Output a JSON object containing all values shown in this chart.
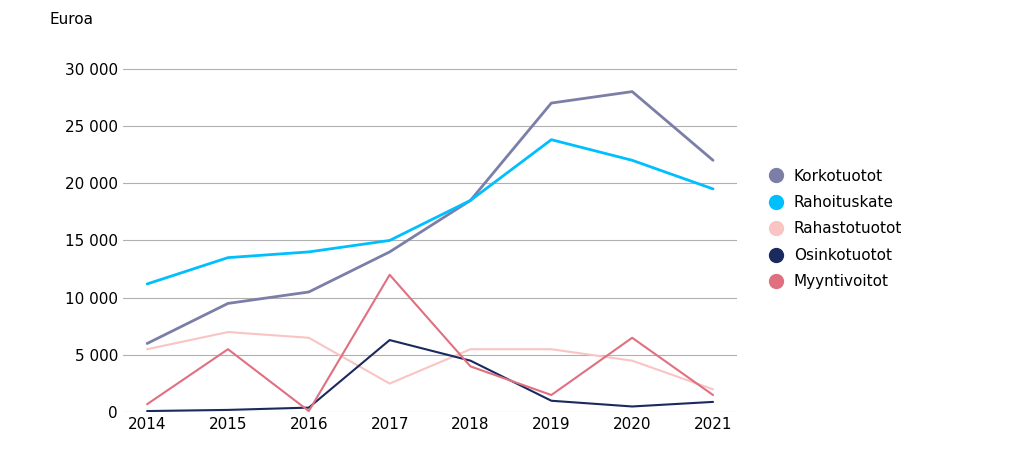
{
  "years": [
    2014,
    2015,
    2016,
    2017,
    2018,
    2019,
    2020,
    2021
  ],
  "series": {
    "Korkotuotot": [
      6000,
      9500,
      10500,
      14000,
      18500,
      27000,
      28000,
      22000
    ],
    "Rahoituskate": [
      11200,
      13500,
      14000,
      15000,
      18500,
      23800,
      22000,
      19500
    ],
    "Rahastotuotot": [
      5500,
      7000,
      6500,
      2500,
      5500,
      5500,
      4500,
      2000
    ],
    "Osinkotuotot": [
      100,
      200,
      400,
      6300,
      4500,
      1000,
      500,
      900
    ],
    "Myyntivoitot": [
      700,
      5500,
      100,
      12000,
      4000,
      1500,
      6500,
      1500
    ]
  },
  "colors": {
    "Korkotuotot": "#7b7fa8",
    "Rahoituskate": "#00bfff",
    "Rahastotuotot": "#f9c4c4",
    "Osinkotuotot": "#1a2a5e",
    "Myyntivoitot": "#e07080"
  },
  "linewidths": {
    "Korkotuotot": 2.0,
    "Rahoituskate": 2.0,
    "Rahastotuotot": 1.5,
    "Osinkotuotot": 1.5,
    "Myyntivoitot": 1.5
  },
  "top_label": "Euroa",
  "ylim": [
    0,
    32000
  ],
  "yticks": [
    0,
    5000,
    10000,
    15000,
    20000,
    25000,
    30000
  ],
  "ytick_labels": [
    "0",
    "5 000",
    "10 000",
    "15 000",
    "20 000",
    "25 000",
    "30 000"
  ],
  "background_color": "#ffffff",
  "legend_entries": [
    "Korkotuotot",
    "Rahoituskate",
    "Rahastotuotot",
    "Osinkotuotot",
    "Myyntivoitot"
  ],
  "legend_marker_size": 10,
  "legend_fontsize": 11,
  "tick_fontsize": 11
}
